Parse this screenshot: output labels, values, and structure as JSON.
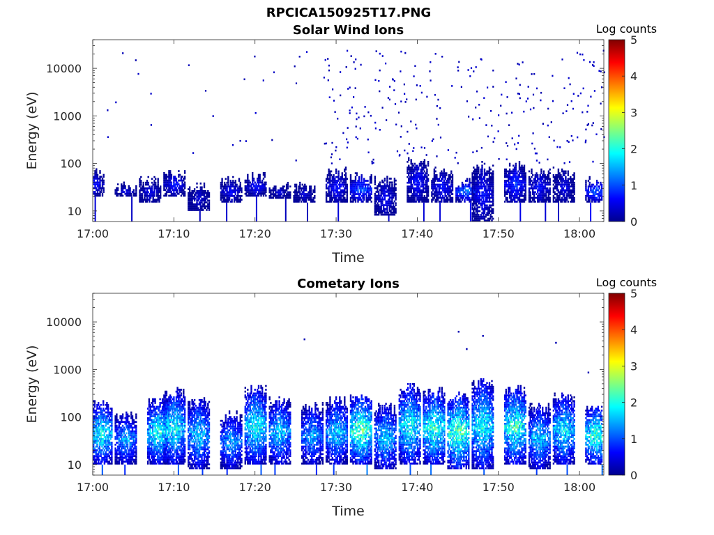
{
  "figure_title": "RPCICA150925T17.PNG",
  "colormap": [
    "#00008f",
    "#0000ff",
    "#0080ff",
    "#00ffff",
    "#80ff80",
    "#ffff00",
    "#ff8000",
    "#ff0000",
    "#800000"
  ],
  "chart_data": [
    {
      "type": "heatmap",
      "title": "Solar Wind Ions",
      "xlabel": "Time",
      "ylabel": "Energy (eV)",
      "yscale": "log",
      "xlim": [
        "17:00",
        "18:03"
      ],
      "ylim": [
        6,
        40000
      ],
      "x_ticks": [
        "17:00",
        "17:10",
        "17:20",
        "17:30",
        "17:40",
        "17:50",
        "18:00"
      ],
      "y_ticks": [
        "10",
        "100",
        "1000",
        "10000"
      ],
      "colorbar": {
        "label": "Log counts",
        "range": [
          0,
          5
        ],
        "ticks": [
          "0",
          "1",
          "2",
          "3",
          "4",
          "5"
        ]
      },
      "bands": [
        {
          "t": "17:00",
          "e_low": 20,
          "e_high": 60,
          "z": 0.8
        },
        {
          "t": "17:04",
          "e_low": 20,
          "e_high": 30,
          "z": 0.6
        },
        {
          "t": "17:07",
          "e_low": 15,
          "e_high": 40,
          "z": 0.6
        },
        {
          "t": "17:10",
          "e_low": 20,
          "e_high": 60,
          "z": 0.8
        },
        {
          "t": "17:13",
          "e_low": 10,
          "e_high": 30,
          "z": 0.5
        },
        {
          "t": "17:17",
          "e_low": 15,
          "e_high": 40,
          "z": 0.7
        },
        {
          "t": "17:20",
          "e_low": 20,
          "e_high": 50,
          "z": 0.8
        },
        {
          "t": "17:23",
          "e_low": 18,
          "e_high": 30,
          "z": 0.5
        },
        {
          "t": "17:26",
          "e_low": 15,
          "e_high": 30,
          "z": 0.5
        },
        {
          "t": "17:30",
          "e_low": 15,
          "e_high": 60,
          "z": 0.8
        },
        {
          "t": "17:33",
          "e_low": 15,
          "e_high": 50,
          "z": 1.2
        },
        {
          "t": "17:36",
          "e_low": 8,
          "e_high": 40,
          "z": 0.7
        },
        {
          "t": "17:40",
          "e_low": 15,
          "e_high": 100,
          "z": 0.8
        },
        {
          "t": "17:43",
          "e_low": 15,
          "e_high": 60,
          "z": 0.8
        },
        {
          "t": "17:46",
          "e_low": 15,
          "e_high": 40,
          "z": 1.3
        },
        {
          "t": "17:48",
          "e_low": 6,
          "e_high": 80,
          "z": 0.8
        },
        {
          "t": "17:52",
          "e_low": 15,
          "e_high": 80,
          "z": 1.0
        },
        {
          "t": "17:55",
          "e_low": 15,
          "e_high": 60,
          "z": 0.8
        },
        {
          "t": "17:58",
          "e_low": 15,
          "e_high": 60,
          "z": 0.6
        },
        {
          "t": "18:02",
          "e_low": 15,
          "e_high": 40,
          "z": 1.2
        }
      ],
      "note_sparse_counts": "scattered single counts from ~100 eV to ~30000 eV, increasing after 17:30"
    },
    {
      "type": "heatmap",
      "title": "Cometary Ions",
      "xlabel": "Time",
      "ylabel": "Energy (eV)",
      "yscale": "log",
      "xlim": [
        "17:00",
        "18:03"
      ],
      "ylim": [
        6,
        40000
      ],
      "x_ticks": [
        "17:00",
        "17:10",
        "17:20",
        "17:30",
        "17:40",
        "17:50",
        "18:00"
      ],
      "y_ticks": [
        "10",
        "100",
        "1000",
        "10000"
      ],
      "colorbar": {
        "label": "Log counts",
        "range": [
          0,
          5
        ],
        "ticks": [
          "0",
          "1",
          "2",
          "3",
          "4",
          "5"
        ]
      },
      "bands": [
        {
          "t": "17:01",
          "e_low": 10,
          "e_high": 170,
          "z": 2.1
        },
        {
          "t": "17:04",
          "e_low": 10,
          "e_high": 100,
          "z": 1.6
        },
        {
          "t": "17:08",
          "e_low": 10,
          "e_high": 200,
          "z": 2.1
        },
        {
          "t": "17:10",
          "e_low": 10,
          "e_high": 300,
          "z": 2.1
        },
        {
          "t": "17:13",
          "e_low": 8,
          "e_high": 200,
          "z": 1.8
        },
        {
          "t": "17:17",
          "e_low": 8,
          "e_high": 100,
          "z": 1.6
        },
        {
          "t": "17:20",
          "e_low": 10,
          "e_high": 350,
          "z": 2.1
        },
        {
          "t": "17:23",
          "e_low": 10,
          "e_high": 200,
          "z": 1.8
        },
        {
          "t": "17:27",
          "e_low": 10,
          "e_high": 150,
          "z": 1.6
        },
        {
          "t": "17:30",
          "e_low": 10,
          "e_high": 200,
          "z": 1.8
        },
        {
          "t": "17:33",
          "e_low": 10,
          "e_high": 250,
          "z": 2.5
        },
        {
          "t": "17:36",
          "e_low": 8,
          "e_high": 150,
          "z": 1.8
        },
        {
          "t": "17:39",
          "e_low": 10,
          "e_high": 400,
          "z": 2.1
        },
        {
          "t": "17:42",
          "e_low": 10,
          "e_high": 300,
          "z": 2.3
        },
        {
          "t": "17:45",
          "e_low": 8,
          "e_high": 250,
          "z": 2.5
        },
        {
          "t": "17:48",
          "e_low": 8,
          "e_high": 500,
          "z": 2.1
        },
        {
          "t": "17:52",
          "e_low": 10,
          "e_high": 350,
          "z": 2.3
        },
        {
          "t": "17:55",
          "e_low": 8,
          "e_high": 150,
          "z": 1.8
        },
        {
          "t": "17:58",
          "e_low": 10,
          "e_high": 250,
          "z": 2.0
        },
        {
          "t": "18:02",
          "e_low": 10,
          "e_high": 150,
          "z": 2.3
        }
      ],
      "outliers": [
        {
          "t": "17:26",
          "energy": 4500
        },
        {
          "t": "17:45",
          "energy": 6500
        },
        {
          "t": "17:46",
          "energy": 2800
        },
        {
          "t": "17:48",
          "energy": 5300
        },
        {
          "t": "17:57",
          "energy": 3800
        },
        {
          "t": "18:01",
          "energy": 900
        }
      ]
    }
  ]
}
